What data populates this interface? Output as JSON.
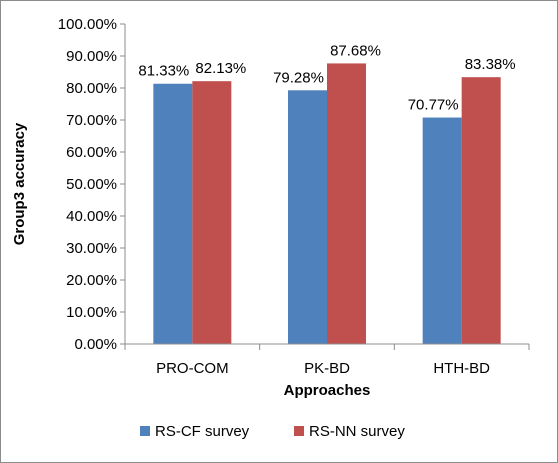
{
  "chart_data": {
    "type": "bar",
    "title": "",
    "xlabel": "Approaches",
    "ylabel": "Group3 accuracy",
    "categories": [
      "PRO-COM",
      "PK-BD",
      "HTH-BD"
    ],
    "series": [
      {
        "name": "RS-CF survey",
        "color": "#4f81bd",
        "values": [
          81.33,
          79.28,
          70.77
        ],
        "labels": [
          "81.33%",
          "79.28%",
          "70.77%"
        ]
      },
      {
        "name": "RS-NN survey",
        "color": "#c0504d",
        "values": [
          82.13,
          87.68,
          83.38
        ],
        "labels": [
          "82.13%",
          "87.68%",
          "83.38%"
        ]
      }
    ],
    "ylim": [
      0,
      100
    ],
    "ytick_values": [
      0,
      10,
      20,
      30,
      40,
      50,
      60,
      70,
      80,
      90,
      100
    ],
    "ytick_labels": [
      "0.00%",
      "10.00%",
      "20.00%",
      "30.00%",
      "40.00%",
      "50.00%",
      "60.00%",
      "70.00%",
      "80.00%",
      "90.00%",
      "100.00%"
    ],
    "grid": false,
    "legend_position": "bottom"
  }
}
